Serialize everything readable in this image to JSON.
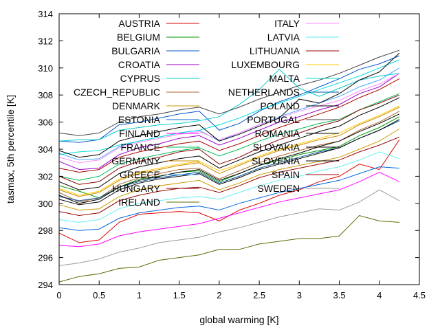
{
  "chart_data": {
    "type": "line",
    "xlabel": "global warming [K]",
    "ylabel": "tasmax, 5th percentile [K]",
    "xlim": [
      0,
      4.5
    ],
    "ylim": [
      294,
      314
    ],
    "xticks": [
      "0",
      "0.5",
      "1",
      "1.5",
      "2",
      "2.5",
      "3",
      "3.5",
      "4",
      "4.5"
    ],
    "yticks": [
      "294",
      "296",
      "298",
      "300",
      "302",
      "304",
      "306",
      "308",
      "310",
      "312",
      "314"
    ],
    "x": [
      0,
      0.25,
      0.5,
      0.75,
      1.0,
      1.25,
      1.5,
      1.75,
      2.0,
      2.25,
      2.5,
      2.75,
      3.0,
      3.25,
      3.5,
      3.75,
      4.0,
      4.25
    ],
    "grid": false,
    "legend_position": "top-inside",
    "series": [
      {
        "name": "AUSTRIA",
        "color": "#dd0000",
        "values": [
          297.8,
          297.1,
          297.3,
          298.6,
          299.2,
          299.3,
          299.4,
          299.3,
          298.7,
          299.5,
          300.0,
          300.6,
          301.0,
          301.6,
          302.0,
          302.9,
          302.5,
          304.7
        ]
      },
      {
        "name": "BELGIUM",
        "color": "#009900",
        "values": [
          301.3,
          300.9,
          300.4,
          301.2,
          301.8,
          302.0,
          302.3,
          302.4,
          301.6,
          302.2,
          302.8,
          303.2,
          303.6,
          303.9,
          304.2,
          305.0,
          305.6,
          306.4
        ]
      },
      {
        "name": "BULGARIA",
        "color": "#0055cc",
        "values": [
          304.6,
          304.5,
          304.7,
          305.8,
          306.0,
          306.3,
          306.6,
          306.8,
          305.4,
          305.9,
          306.8,
          307.5,
          308.0,
          308.6,
          309.2,
          309.9,
          310.3,
          310.9
        ]
      },
      {
        "name": "CROATIA",
        "color": "#9900cc",
        "values": [
          303.1,
          302.5,
          302.6,
          303.6,
          304.1,
          304.4,
          304.8,
          305.0,
          304.3,
          304.8,
          305.4,
          306.0,
          306.4,
          306.9,
          307.3,
          308.1,
          308.6,
          309.6
        ]
      },
      {
        "name": "CYPRUS",
        "color": "#00cccc",
        "values": [
          304.6,
          304.7,
          304.7,
          305.4,
          305.6,
          305.8,
          305.9,
          306.1,
          306.4,
          307.3,
          308.4,
          309.9,
          308.5,
          307.9,
          308.5,
          309.1,
          309.4,
          309.6
        ]
      },
      {
        "name": "CZECH_REPUBLIC",
        "color": "#aa6633",
        "values": [
          300.8,
          300.1,
          300.4,
          301.4,
          301.9,
          302.2,
          302.5,
          302.6,
          301.8,
          302.4,
          303.0,
          303.5,
          303.9,
          304.3,
          304.6,
          305.4,
          306.0,
          306.8
        ]
      },
      {
        "name": "DENMARK",
        "color": "#cc9900",
        "values": [
          299.9,
          299.5,
          299.6,
          300.5,
          301.0,
          301.3,
          301.5,
          301.7,
          301.0,
          301.5,
          302.1,
          302.5,
          302.8,
          303.1,
          303.4,
          304.0,
          304.6,
          305.5
        ]
      },
      {
        "name": "ESTONIA",
        "color": "#0066dd",
        "values": [
          298.2,
          298.0,
          298.1,
          298.9,
          299.3,
          299.5,
          299.7,
          299.8,
          299.5,
          300.0,
          300.4,
          300.8,
          301.1,
          301.4,
          301.7,
          302.2,
          302.7,
          302.6
        ]
      },
      {
        "name": "FINLAND",
        "color": "#ff00ff",
        "values": [
          296.9,
          296.8,
          297.0,
          297.6,
          297.9,
          298.1,
          298.3,
          298.5,
          298.9,
          299.3,
          299.7,
          300.1,
          300.4,
          300.7,
          301.0,
          301.6,
          302.3,
          301.6
        ]
      },
      {
        "name": "FRANCE",
        "color": "#00bb55",
        "values": [
          302.0,
          301.7,
          302.0,
          302.9,
          303.3,
          303.6,
          303.9,
          304.1,
          303.5,
          304.0,
          304.6,
          305.1,
          305.5,
          305.9,
          306.2,
          306.9,
          307.5,
          308.1
        ]
      },
      {
        "name": "GERMANY",
        "color": "#cc8800",
        "values": [
          301.0,
          300.5,
          300.8,
          301.7,
          302.2,
          302.5,
          302.8,
          303.0,
          302.2,
          302.8,
          303.4,
          303.9,
          304.3,
          304.7,
          305.0,
          305.8,
          306.4,
          307.1
        ]
      },
      {
        "name": "GREECE",
        "color": "#44aaff",
        "values": [
          303.7,
          303.2,
          303.3,
          304.2,
          304.6,
          304.9,
          305.2,
          305.4,
          304.6,
          305.2,
          305.8,
          306.4,
          306.9,
          307.4,
          307.9,
          308.6,
          309.1,
          310.0
        ]
      },
      {
        "name": "HUNGARY",
        "color": "#8b0000",
        "values": [
          302.0,
          301.4,
          301.6,
          302.6,
          303.1,
          303.4,
          303.8,
          304.0,
          302.9,
          303.4,
          304.1,
          304.7,
          305.2,
          305.7,
          306.1,
          306.9,
          307.4,
          308.0
        ]
      },
      {
        "name": "IRELAND",
        "color": "#556b00",
        "values": [
          294.2,
          294.6,
          294.8,
          295.2,
          295.3,
          295.8,
          296.0,
          296.2,
          296.6,
          296.6,
          297.0,
          297.2,
          297.4,
          297.4,
          297.6,
          299.1,
          298.7,
          298.6
        ]
      },
      {
        "name": "ITALY",
        "color": "#ff88ff",
        "values": [
          303.4,
          303.0,
          303.2,
          304.1,
          304.5,
          304.8,
          305.1,
          305.3,
          304.7,
          305.2,
          305.8,
          306.3,
          306.8,
          307.2,
          307.6,
          308.3,
          308.8,
          309.6
        ]
      },
      {
        "name": "LATVIA",
        "color": "#66eeee",
        "values": [
          298.8,
          298.6,
          298.8,
          299.6,
          300.0,
          300.2,
          300.4,
          300.5,
          300.3,
          300.8,
          301.3,
          301.7,
          302.0,
          302.4,
          302.7,
          303.2,
          303.8,
          303.3
        ]
      },
      {
        "name": "LITHUANIA",
        "color": "#990000",
        "values": [
          299.4,
          299.1,
          299.3,
          300.2,
          300.6,
          300.9,
          301.1,
          301.2,
          300.8,
          301.3,
          301.9,
          302.3,
          302.6,
          302.9,
          303.2,
          303.8,
          304.3,
          304.9
        ]
      },
      {
        "name": "LUXEMBOURG",
        "color": "#ffcc00",
        "values": [
          301.1,
          300.6,
          300.9,
          301.8,
          302.3,
          302.6,
          302.9,
          303.1,
          302.4,
          302.9,
          303.5,
          304.0,
          304.4,
          304.8,
          305.2,
          305.9,
          306.5,
          307.2
        ]
      },
      {
        "name": "MALTA",
        "color": "#00dddd",
        "values": [
          303.6,
          303.8,
          303.9,
          304.3,
          304.6,
          304.9,
          305.2,
          305.4,
          305.8,
          306.3,
          306.9,
          307.4,
          307.9,
          308.4,
          308.9,
          309.4,
          310.0,
          310.6
        ]
      },
      {
        "name": "NETHERLANDS",
        "color": "#005599",
        "values": [
          300.5,
          300.2,
          300.4,
          301.2,
          301.6,
          301.9,
          302.1,
          302.3,
          301.5,
          302.0,
          302.6,
          303.0,
          303.4,
          303.8,
          304.1,
          304.8,
          305.4,
          306.1
        ]
      },
      {
        "name": "POLAND",
        "color": "#000000",
        "values": [
          300.3,
          299.9,
          300.1,
          301.0,
          301.5,
          301.8,
          302.0,
          302.2,
          301.4,
          301.9,
          302.5,
          302.9,
          303.3,
          303.7,
          304.1,
          304.8,
          305.4,
          306.2
        ]
      },
      {
        "name": "PORTUGAL",
        "color": "#444444",
        "values": [
          305.2,
          305.0,
          305.2,
          306.0,
          306.4,
          306.6,
          306.9,
          307.1,
          306.6,
          307.1,
          307.7,
          308.2,
          308.7,
          309.1,
          309.6,
          310.2,
          310.8,
          311.3
        ]
      },
      {
        "name": "ROMANIA",
        "color": "#000000",
        "values": [
          303.9,
          303.4,
          303.6,
          304.6,
          305.0,
          305.3,
          305.6,
          305.8,
          304.6,
          305.1,
          305.7,
          306.3,
          307.7,
          307.4,
          308.1,
          309.1,
          309.7,
          311.1
        ]
      },
      {
        "name": "SLOVAKIA",
        "color": "#000000",
        "values": [
          301.6,
          301.0,
          301.2,
          302.2,
          302.7,
          303.0,
          303.3,
          303.5,
          302.6,
          303.2,
          303.8,
          304.3,
          304.8,
          305.3,
          305.7,
          306.5,
          307.1,
          307.8
        ]
      },
      {
        "name": "SLOVENIA",
        "color": "#000000",
        "values": [
          300.6,
          300.0,
          300.3,
          301.2,
          301.7,
          302.0,
          302.3,
          302.5,
          301.7,
          302.2,
          302.8,
          303.3,
          303.7,
          304.2,
          304.6,
          305.3,
          305.9,
          306.6
        ]
      },
      {
        "name": "SPAIN",
        "color": "#aa0000",
        "values": [
          302.6,
          302.3,
          302.5,
          303.4,
          303.8,
          304.1,
          304.4,
          304.6,
          303.9,
          304.4,
          305.0,
          305.6,
          306.1,
          306.6,
          307.1,
          307.8,
          308.4,
          309.2
        ]
      },
      {
        "name": "SWEDEN",
        "color": "#999999",
        "values": [
          295.4,
          295.6,
          295.9,
          296.4,
          296.7,
          297.1,
          297.3,
          297.5,
          297.9,
          298.2,
          298.6,
          299.0,
          299.3,
          299.6,
          299.5,
          300.1,
          301.0,
          300.2
        ]
      }
    ]
  }
}
